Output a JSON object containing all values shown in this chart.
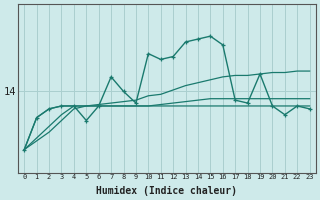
{
  "xlabel": "Humidex (Indice chaleur)",
  "bg_color": "#ceeaea",
  "grid_color": "#aacfcf",
  "line_color": "#1a7a6e",
  "x_ticks": [
    0,
    1,
    2,
    3,
    4,
    5,
    6,
    7,
    8,
    9,
    10,
    11,
    12,
    13,
    14,
    15,
    16,
    17,
    18,
    19,
    20,
    21,
    22,
    23
  ],
  "y_label_val": 14,
  "series": [
    {
      "data": [
        12.0,
        13.1,
        13.4,
        13.5,
        13.5,
        13.0,
        13.5,
        14.5,
        14.0,
        13.6,
        15.3,
        15.1,
        15.2,
        15.7,
        15.8,
        15.9,
        15.6,
        13.7,
        13.6,
        14.6,
        13.5,
        13.2,
        13.5,
        13.4
      ],
      "marker": true,
      "lw": 1.0
    },
    {
      "data": [
        12.0,
        13.1,
        13.4,
        13.5,
        13.5,
        13.5,
        13.5,
        13.5,
        13.5,
        13.5,
        13.5,
        13.55,
        13.6,
        13.65,
        13.7,
        13.75,
        13.75,
        13.75,
        13.75,
        13.75,
        13.75,
        13.75,
        13.75,
        13.75
      ],
      "marker": false,
      "lw": 0.9
    },
    {
      "data": [
        12.0,
        12.4,
        12.8,
        13.2,
        13.5,
        13.5,
        13.55,
        13.6,
        13.65,
        13.7,
        13.85,
        13.9,
        14.05,
        14.2,
        14.3,
        14.4,
        14.5,
        14.55,
        14.55,
        14.6,
        14.65,
        14.65,
        14.7,
        14.7
      ],
      "marker": false,
      "lw": 0.9
    },
    {
      "data": [
        12.0,
        12.3,
        12.6,
        13.0,
        13.4,
        13.5,
        13.5,
        13.5,
        13.5,
        13.5,
        13.5,
        13.5,
        13.5,
        13.5,
        13.5,
        13.5,
        13.5,
        13.5,
        13.5,
        13.5,
        13.5,
        13.5,
        13.5,
        13.5
      ],
      "marker": false,
      "lw": 0.9
    }
  ],
  "ylim": [
    11.2,
    17.0
  ],
  "xlim": [
    -0.5,
    23.5
  ],
  "figsize": [
    3.2,
    2.0
  ],
  "dpi": 100
}
